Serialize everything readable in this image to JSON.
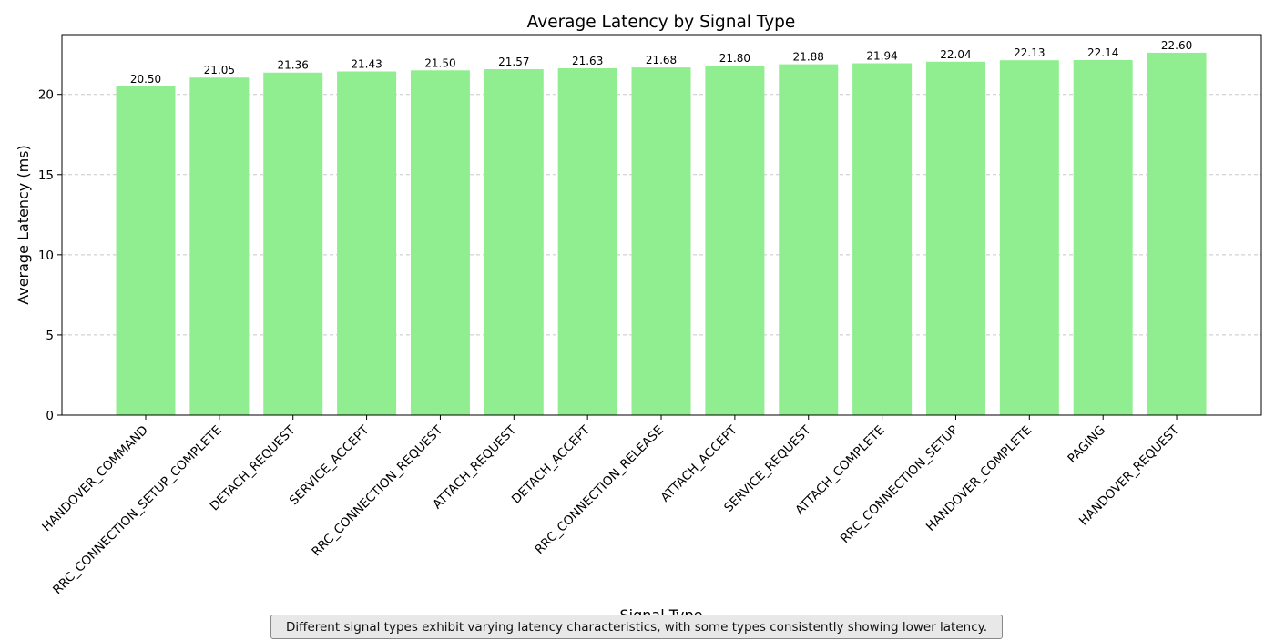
{
  "chart_data": {
    "type": "bar",
    "title": "Average Latency by Signal Type",
    "xlabel": "Signal Type",
    "ylabel": "Average Latency (ms)",
    "categories": [
      "HANDOVER_COMMAND",
      "RRC_CONNECTION_SETUP_COMPLETE",
      "DETACH_REQUEST",
      "SERVICE_ACCEPT",
      "RRC_CONNECTION_REQUEST",
      "ATTACH_REQUEST",
      "DETACH_ACCEPT",
      "RRC_CONNECTION_RELEASE",
      "ATTACH_ACCEPT",
      "SERVICE_REQUEST",
      "ATTACH_COMPLETE",
      "RRC_CONNECTION_SETUP",
      "HANDOVER_COMPLETE",
      "PAGING",
      "HANDOVER_REQUEST"
    ],
    "values": [
      20.5,
      21.05,
      21.36,
      21.43,
      21.5,
      21.57,
      21.63,
      21.68,
      21.8,
      21.88,
      21.94,
      22.04,
      22.13,
      22.14,
      22.6
    ],
    "value_labels": [
      "20.50",
      "21.05",
      "21.36",
      "21.43",
      "21.50",
      "21.57",
      "21.63",
      "21.68",
      "21.80",
      "21.88",
      "21.94",
      "22.04",
      "22.13",
      "22.14",
      "22.60"
    ],
    "ylim": [
      0,
      23.73
    ],
    "yticks": [
      0,
      5,
      10,
      15,
      20
    ],
    "grid": "y-dashed",
    "bar_color": "#90ee90",
    "annotation": "Different signal types exhibit varying latency characteristics, with some types consistently showing lower latency."
  }
}
